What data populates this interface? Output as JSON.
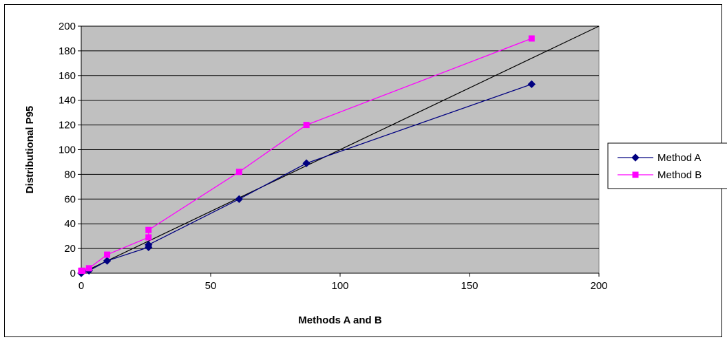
{
  "chart_data": {
    "type": "scatter",
    "title": "",
    "xlabel": "Methods A and B",
    "ylabel": "Distributional P95",
    "xlim": [
      0,
      200
    ],
    "ylim": [
      0,
      200
    ],
    "x_ticks": [
      0,
      50,
      100,
      150,
      200
    ],
    "y_ticks": [
      0,
      20,
      40,
      60,
      80,
      100,
      120,
      140,
      160,
      180,
      200
    ],
    "grid": "horizontal",
    "plot_background": "#c0c0c0",
    "legend_position": "right",
    "reference_line": {
      "x": [
        0,
        200
      ],
      "y": [
        0,
        200
      ],
      "color": "#000000"
    },
    "series": [
      {
        "name": "Method A",
        "color": "#000080",
        "marker": "diamond",
        "x": [
          0,
          0.5,
          3,
          10,
          26,
          26,
          61,
          87,
          174
        ],
        "y": [
          0,
          1,
          2,
          10,
          21,
          23,
          60,
          89,
          153
        ]
      },
      {
        "name": "Method B",
        "color": "#ff00ff",
        "marker": "square",
        "x": [
          0,
          0.5,
          3,
          10,
          26,
          26,
          61,
          87,
          174
        ],
        "y": [
          2,
          2,
          4,
          15,
          29,
          35,
          82,
          120,
          190
        ]
      }
    ]
  }
}
